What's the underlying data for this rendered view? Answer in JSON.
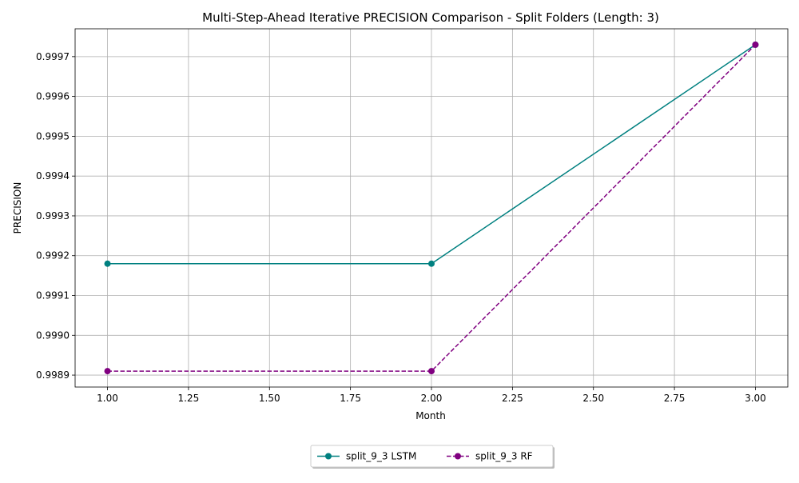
{
  "chart_data": {
    "type": "line",
    "title": "Multi-Step-Ahead Iterative PRECISION Comparison - Split Folders (Length: 3)",
    "xlabel": "Month",
    "ylabel": "PRECISION",
    "x": [
      1.0,
      2.0,
      3.0
    ],
    "xlim": [
      0.9,
      3.1
    ],
    "ylim": [
      0.99887,
      0.99977
    ],
    "xticks": [
      "1.00",
      "1.25",
      "1.50",
      "1.75",
      "2.00",
      "2.25",
      "2.50",
      "2.75",
      "3.00"
    ],
    "yticks": [
      "0.9989",
      "0.9990",
      "0.9991",
      "0.9992",
      "0.9993",
      "0.9994",
      "0.9995",
      "0.9996",
      "0.9997"
    ],
    "grid": true,
    "legend_position": "bottom-center, below plot",
    "series": [
      {
        "name": "split_9_3 LSTM",
        "values": [
          0.99918,
          0.99918,
          0.99973
        ],
        "color": "#008080",
        "style": "solid",
        "marker": "circle"
      },
      {
        "name": "split_9_3 RF",
        "values": [
          0.99891,
          0.99891,
          0.99973
        ],
        "color": "#800080",
        "style": "dashed",
        "marker": "circle"
      }
    ]
  }
}
